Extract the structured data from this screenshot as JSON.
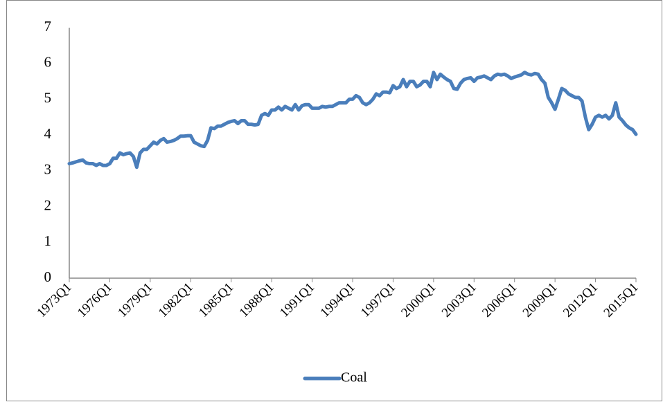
{
  "chart_data": {
    "type": "line",
    "categories": [
      "1973Q1",
      null,
      null,
      null,
      null,
      null,
      null,
      null,
      null,
      null,
      null,
      null,
      "1976Q1",
      null,
      null,
      null,
      null,
      null,
      null,
      null,
      null,
      null,
      null,
      null,
      "1979Q1",
      null,
      null,
      null,
      null,
      null,
      null,
      null,
      null,
      null,
      null,
      null,
      "1982Q1",
      null,
      null,
      null,
      null,
      null,
      null,
      null,
      null,
      null,
      null,
      null,
      "1985Q1",
      null,
      null,
      null,
      null,
      null,
      null,
      null,
      null,
      null,
      null,
      null,
      "1988Q1",
      null,
      null,
      null,
      null,
      null,
      null,
      null,
      null,
      null,
      null,
      null,
      "1991Q1",
      null,
      null,
      null,
      null,
      null,
      null,
      null,
      null,
      null,
      null,
      null,
      "1994Q1",
      null,
      null,
      null,
      null,
      null,
      null,
      null,
      null,
      null,
      null,
      null,
      "1997Q1",
      null,
      null,
      null,
      null,
      null,
      null,
      null,
      null,
      null,
      null,
      null,
      "2000Q1",
      null,
      null,
      null,
      null,
      null,
      null,
      null,
      null,
      null,
      null,
      null,
      "2003Q1",
      null,
      null,
      null,
      null,
      null,
      null,
      null,
      null,
      null,
      null,
      null,
      "2006Q1",
      null,
      null,
      null,
      null,
      null,
      null,
      null,
      null,
      null,
      null,
      null,
      "2009Q1",
      null,
      null,
      null,
      null,
      null,
      null,
      null,
      null,
      null,
      null,
      null,
      "2012Q1",
      null,
      null,
      null,
      null,
      null,
      null,
      null,
      null,
      null,
      null,
      null,
      "2015Q1"
    ],
    "series": [
      {
        "name": "Coal",
        "color": "#4a7ebb",
        "values": [
          3.2,
          3.22,
          3.25,
          3.28,
          3.3,
          3.22,
          3.2,
          3.2,
          3.15,
          3.2,
          3.15,
          3.15,
          3.2,
          3.35,
          3.35,
          3.5,
          3.45,
          3.48,
          3.5,
          3.4,
          3.1,
          3.5,
          3.6,
          3.6,
          3.7,
          3.8,
          3.75,
          3.85,
          3.9,
          3.8,
          3.82,
          3.85,
          3.9,
          3.97,
          3.97,
          3.98,
          3.98,
          3.8,
          3.75,
          3.7,
          3.68,
          3.85,
          4.2,
          4.18,
          4.25,
          4.25,
          4.3,
          4.35,
          4.38,
          4.4,
          4.32,
          4.4,
          4.4,
          4.3,
          4.3,
          4.28,
          4.3,
          4.55,
          4.6,
          4.55,
          4.7,
          4.7,
          4.78,
          4.7,
          4.8,
          4.75,
          4.7,
          4.85,
          4.7,
          4.82,
          4.85,
          4.85,
          4.75,
          4.75,
          4.75,
          4.8,
          4.78,
          4.8,
          4.8,
          4.85,
          4.9,
          4.9,
          4.9,
          5.0,
          5.0,
          5.1,
          5.05,
          4.9,
          4.85,
          4.9,
          5.0,
          5.15,
          5.1,
          5.2,
          5.2,
          5.18,
          5.38,
          5.3,
          5.35,
          5.55,
          5.35,
          5.5,
          5.5,
          5.35,
          5.4,
          5.5,
          5.5,
          5.35,
          5.75,
          5.55,
          5.7,
          5.62,
          5.55,
          5.5,
          5.3,
          5.28,
          5.45,
          5.55,
          5.58,
          5.6,
          5.5,
          5.6,
          5.62,
          5.65,
          5.6,
          5.55,
          5.65,
          5.7,
          5.68,
          5.7,
          5.65,
          5.58,
          5.62,
          5.65,
          5.68,
          5.75,
          5.7,
          5.68,
          5.72,
          5.7,
          5.55,
          5.45,
          5.05,
          4.9,
          4.72,
          5.0,
          5.3,
          5.25,
          5.15,
          5.1,
          5.05,
          5.05,
          4.95,
          4.5,
          4.15,
          4.3,
          4.5,
          4.55,
          4.5,
          4.55,
          4.45,
          4.55,
          4.9,
          4.5,
          4.4,
          4.28,
          4.2,
          4.15,
          4.02
        ]
      }
    ],
    "ylim": [
      0,
      7
    ],
    "yticks": [
      0,
      1,
      2,
      3,
      4,
      5,
      6,
      7
    ],
    "grid": false,
    "legend": "bottom"
  }
}
